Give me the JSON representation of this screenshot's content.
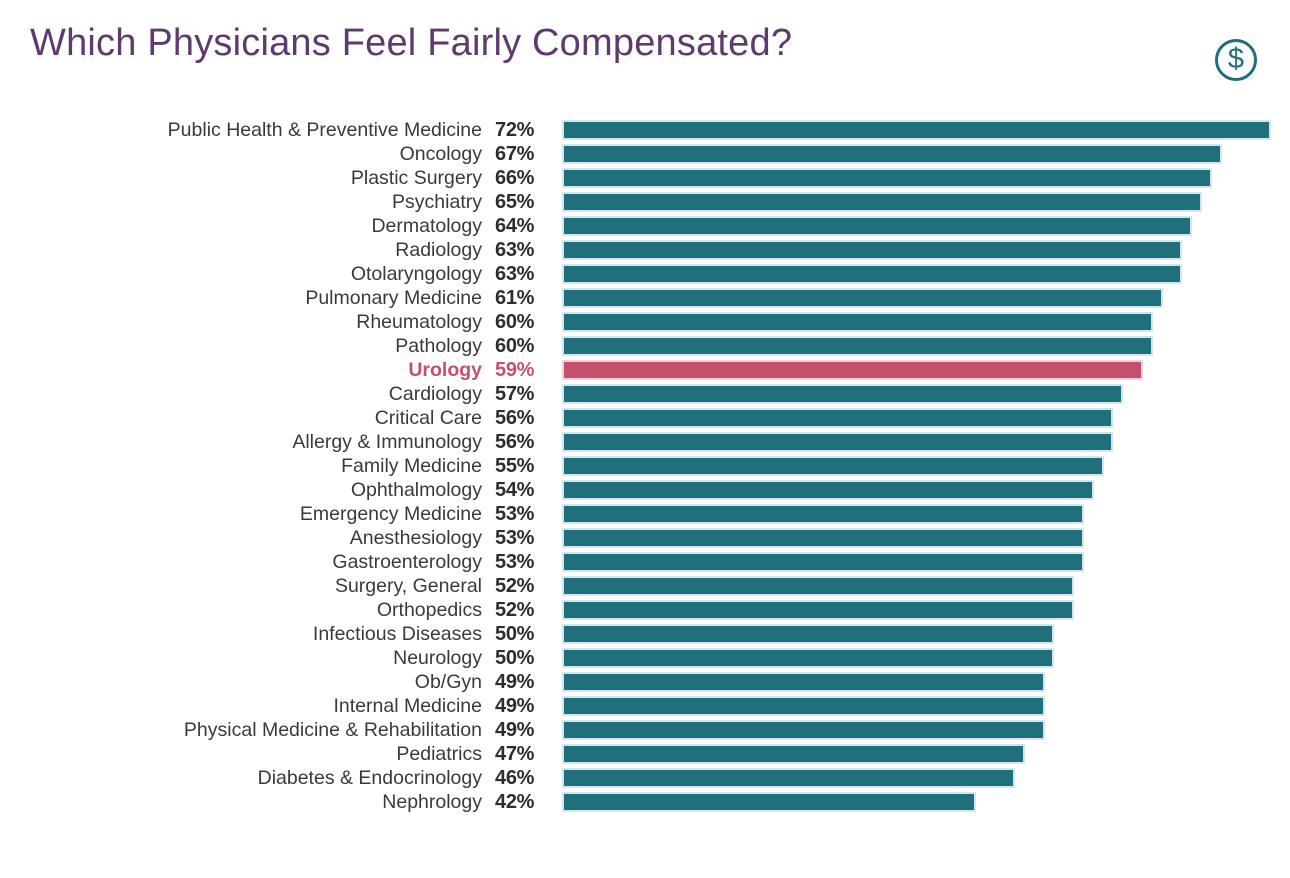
{
  "title": "Which Physicians Feel Fairly Compensated?",
  "icon": {
    "name": "dollar-icon",
    "symbol": "$"
  },
  "colors": {
    "title": "#5E3A6E",
    "bar": "#1F6F7D",
    "bar_border": "#D3E5EB",
    "highlight": "#C5506B",
    "highlight_border": "#F0D0DA",
    "label": "#3A3A3A",
    "value": "#2D2D2D",
    "background": "#FFFFFF"
  },
  "chart_data": {
    "type": "bar",
    "orientation": "horizontal",
    "title": "Which Physicians Feel Fairly Compensated?",
    "xlabel": "",
    "ylabel": "",
    "xlim": [
      0,
      72
    ],
    "grid": false,
    "legend": "none",
    "value_suffix": "%",
    "highlight_category": "Urology",
    "categories": [
      "Public Health & Preventive Medicine",
      "Oncology",
      "Plastic Surgery",
      "Psychiatry",
      "Dermatology",
      "Radiology",
      "Otolaryngology",
      "Pulmonary Medicine",
      "Rheumatology",
      "Pathology",
      "Urology",
      "Cardiology",
      "Critical Care",
      "Allergy & Immunology",
      "Family Medicine",
      "Ophthalmology",
      "Emergency Medicine",
      "Anesthesiology",
      "Gastroenterology",
      "Surgery, General",
      "Orthopedics",
      "Infectious Diseases",
      "Neurology",
      "Ob/Gyn",
      "Internal Medicine",
      "Physical Medicine & Rehabilitation",
      "Pediatrics",
      "Diabetes & Endocrinology",
      "Nephrology"
    ],
    "values": [
      72,
      67,
      66,
      65,
      64,
      63,
      63,
      61,
      60,
      60,
      59,
      57,
      56,
      56,
      55,
      54,
      53,
      53,
      53,
      52,
      52,
      50,
      50,
      49,
      49,
      49,
      47,
      46,
      42
    ]
  }
}
